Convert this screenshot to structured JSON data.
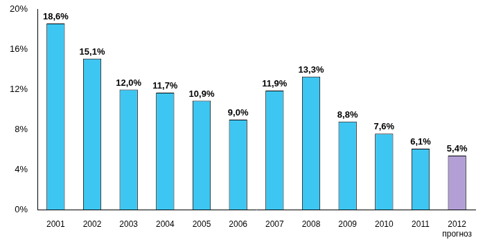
{
  "chart_data": {
    "type": "bar",
    "categories": [
      "2001",
      "2002",
      "2003",
      "2004",
      "2005",
      "2006",
      "2007",
      "2008",
      "2009",
      "2010",
      "2011",
      "2012\nпрогноз"
    ],
    "values": [
      18.6,
      15.1,
      12.0,
      11.7,
      10.9,
      9.0,
      11.9,
      13.3,
      8.8,
      7.6,
      6.1,
      5.4
    ],
    "value_labels": [
      "18,6%",
      "15,1%",
      "12,0%",
      "11,7%",
      "10,9%",
      "9,0%",
      "11,9%",
      "13,3%",
      "8,8%",
      "7,6%",
      "6,1%",
      "5,4%"
    ],
    "colors": [
      "#3ec6f2",
      "#3ec6f2",
      "#3ec6f2",
      "#3ec6f2",
      "#3ec6f2",
      "#3ec6f2",
      "#3ec6f2",
      "#3ec6f2",
      "#3ec6f2",
      "#3ec6f2",
      "#3ec6f2",
      "#b39fd6"
    ],
    "ylim": [
      0,
      20
    ],
    "yticks": [
      {
        "value": 0,
        "label": "0%"
      },
      {
        "value": 4,
        "label": "4%"
      },
      {
        "value": 8,
        "label": "8%"
      },
      {
        "value": 12,
        "label": "12%"
      },
      {
        "value": 16,
        "label": "16%"
      },
      {
        "value": 20,
        "label": "20%"
      }
    ],
    "grid": false,
    "data_labels": true
  }
}
